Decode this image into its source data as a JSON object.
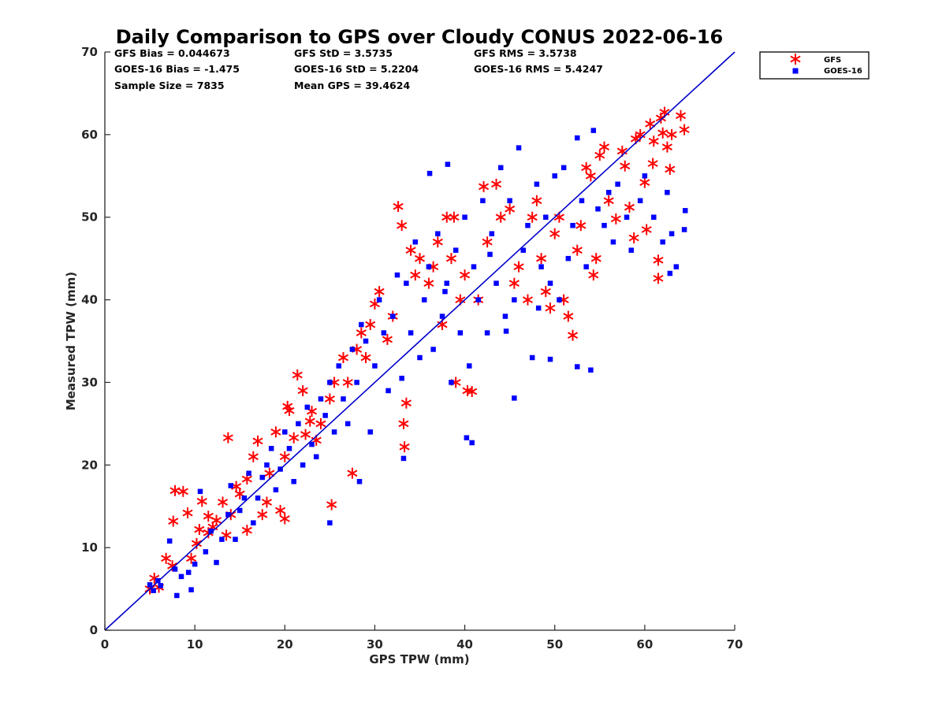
{
  "chart_data": {
    "type": "scatter",
    "title": "Daily Comparison to GPS over Cloudy CONUS 2022-06-16",
    "xlabel": "GPS TPW (mm)",
    "ylabel": "Measured TPW (mm)",
    "xlim": [
      0,
      70
    ],
    "ylim": [
      0,
      70
    ],
    "xticks": [
      "0",
      "10",
      "20",
      "30",
      "40",
      "50",
      "60",
      "70"
    ],
    "yticks": [
      "0",
      "10",
      "20",
      "30",
      "40",
      "50",
      "60",
      "70"
    ],
    "grid": false,
    "legend_position": "outside top-right",
    "reference_line": {
      "name": "1:1 line",
      "x": [
        0,
        70
      ],
      "y": [
        0,
        70
      ],
      "color": "#0000cc"
    },
    "stats": {
      "gfs_bias": "GFS Bias = 0.044673",
      "gfs_std": "GFS StD = 3.5735",
      "gfs_rms": "GFS RMS = 3.5738",
      "goes_bias": "GOES-16 Bias = -1.475",
      "goes_std": "GOES-16 StD = 5.2204",
      "goes_rms": "GOES-16 RMS = 5.4247",
      "sample_size": "Sample Size = 7835",
      "mean_gps": "Mean GPS = 39.4624"
    },
    "series": [
      {
        "name": "GFS",
        "marker": "asterisk",
        "color": "#ff0000",
        "points": [
          [
            5,
            5
          ],
          [
            5.5,
            6.3
          ],
          [
            6,
            5.2
          ],
          [
            6.8,
            8.7
          ],
          [
            7.5,
            7.8
          ],
          [
            7.6,
            13.2
          ],
          [
            7.8,
            16.9
          ],
          [
            8.7,
            16.8
          ],
          [
            9.2,
            14.2
          ],
          [
            9.6,
            8.7
          ],
          [
            10.2,
            10.5
          ],
          [
            10.5,
            12.2
          ],
          [
            10.8,
            15.6
          ],
          [
            11.5,
            11.8
          ],
          [
            11.5,
            13.8
          ],
          [
            12,
            12.5
          ],
          [
            12.4,
            13.3
          ],
          [
            13.1,
            15.5
          ],
          [
            13.5,
            11.5
          ],
          [
            13.7,
            23.3
          ],
          [
            14,
            14
          ],
          [
            14.6,
            17.4
          ],
          [
            15,
            16.5
          ],
          [
            15.8,
            12.1
          ],
          [
            15.8,
            18.3
          ],
          [
            16.5,
            21
          ],
          [
            17,
            22.9
          ],
          [
            17.5,
            14
          ],
          [
            18,
            15.5
          ],
          [
            18.3,
            19
          ],
          [
            19,
            24
          ],
          [
            19.5,
            14.5
          ],
          [
            20,
            13.5
          ],
          [
            20,
            21
          ],
          [
            20.3,
            27.1
          ],
          [
            20.5,
            26.6
          ],
          [
            21,
            23.3
          ],
          [
            21.4,
            30.9
          ],
          [
            22,
            29
          ],
          [
            22.3,
            23.7
          ],
          [
            22.8,
            25.3
          ],
          [
            23,
            26.5
          ],
          [
            23.5,
            23
          ],
          [
            24,
            25
          ],
          [
            25,
            28
          ],
          [
            25.2,
            15.2
          ],
          [
            25.5,
            30
          ],
          [
            26.5,
            33
          ],
          [
            27,
            30
          ],
          [
            27.5,
            19
          ],
          [
            28,
            34
          ],
          [
            28.5,
            36
          ],
          [
            29,
            33
          ],
          [
            29.5,
            37
          ],
          [
            30,
            39.5
          ],
          [
            30.5,
            41
          ],
          [
            31.4,
            35.2
          ],
          [
            32,
            38
          ],
          [
            32.6,
            51.3
          ],
          [
            33,
            49
          ],
          [
            33.2,
            25
          ],
          [
            33.3,
            22.2
          ],
          [
            33.5,
            27.5
          ],
          [
            34,
            46
          ],
          [
            34.5,
            43
          ],
          [
            35,
            45
          ],
          [
            36,
            42
          ],
          [
            36.5,
            44
          ],
          [
            37,
            47
          ],
          [
            37.5,
            37
          ],
          [
            38,
            50
          ],
          [
            38.5,
            45
          ],
          [
            38.8,
            50
          ],
          [
            39,
            30
          ],
          [
            39.5,
            40
          ],
          [
            40,
            43
          ],
          [
            40.3,
            29
          ],
          [
            40.8,
            28.9
          ],
          [
            41.5,
            40
          ],
          [
            42.1,
            53.7
          ],
          [
            42.5,
            47
          ],
          [
            43.5,
            54
          ],
          [
            44,
            50
          ],
          [
            45,
            51
          ],
          [
            45.5,
            42
          ],
          [
            46,
            44
          ],
          [
            47,
            40
          ],
          [
            47.5,
            50
          ],
          [
            48,
            52
          ],
          [
            48.5,
            45
          ],
          [
            49,
            41
          ],
          [
            49.5,
            39
          ],
          [
            50,
            48
          ],
          [
            50.5,
            50
          ],
          [
            51,
            40
          ],
          [
            51.5,
            38
          ],
          [
            52,
            35.7
          ],
          [
            52.5,
            46
          ],
          [
            52.9,
            49
          ],
          [
            53.5,
            56
          ],
          [
            54,
            55
          ],
          [
            54.3,
            43
          ],
          [
            54.6,
            45
          ],
          [
            55,
            57.5
          ],
          [
            55.5,
            58.5
          ],
          [
            56,
            52
          ],
          [
            56.8,
            49.8
          ],
          [
            57.5,
            58
          ],
          [
            57.8,
            56.2
          ],
          [
            58.3,
            51.2
          ],
          [
            58.8,
            47.5
          ],
          [
            59,
            59.5
          ],
          [
            59.5,
            60
          ],
          [
            60,
            54.2
          ],
          [
            60.2,
            48.5
          ],
          [
            60.6,
            61.3
          ],
          [
            60.9,
            56.5
          ],
          [
            61,
            59.2
          ],
          [
            61.5,
            44.8
          ],
          [
            61.5,
            42.6
          ],
          [
            61.8,
            62
          ],
          [
            62,
            60.2
          ],
          [
            62.2,
            62.7
          ],
          [
            62.5,
            58.5
          ],
          [
            62.8,
            55.8
          ],
          [
            63,
            60
          ],
          [
            64,
            62.3
          ],
          [
            64.4,
            60.6
          ]
        ]
      },
      {
        "name": "GOES-16",
        "marker": "square",
        "color": "#0000ff",
        "points": [
          [
            5,
            5.5
          ],
          [
            5.4,
            4.8
          ],
          [
            5.9,
            6
          ],
          [
            6.2,
            5.4
          ],
          [
            7.2,
            10.8
          ],
          [
            7.8,
            7.4
          ],
          [
            8,
            4.2
          ],
          [
            8.5,
            6.5
          ],
          [
            9.3,
            7
          ],
          [
            9.6,
            4.9
          ],
          [
            10,
            8
          ],
          [
            10.6,
            16.8
          ],
          [
            11.2,
            9.5
          ],
          [
            11.8,
            12
          ],
          [
            12.4,
            8.2
          ],
          [
            13,
            11
          ],
          [
            13.7,
            14
          ],
          [
            14,
            17.5
          ],
          [
            14.5,
            11
          ],
          [
            15,
            14.5
          ],
          [
            15.5,
            16
          ],
          [
            16,
            19
          ],
          [
            16.5,
            13
          ],
          [
            17,
            16
          ],
          [
            17.5,
            18.5
          ],
          [
            18,
            20
          ],
          [
            18.5,
            22
          ],
          [
            19,
            17
          ],
          [
            19.5,
            19.5
          ],
          [
            20,
            24
          ],
          [
            20.5,
            22
          ],
          [
            21,
            18
          ],
          [
            21.5,
            25
          ],
          [
            22,
            20
          ],
          [
            22.5,
            27
          ],
          [
            23,
            22.5
          ],
          [
            23.5,
            21
          ],
          [
            24,
            28
          ],
          [
            24.5,
            26
          ],
          [
            25,
            13
          ],
          [
            25,
            30
          ],
          [
            25.5,
            24
          ],
          [
            26,
            32
          ],
          [
            26.5,
            28
          ],
          [
            27,
            25
          ],
          [
            27.5,
            34
          ],
          [
            28,
            30
          ],
          [
            28.3,
            18
          ],
          [
            28.5,
            37
          ],
          [
            29,
            35
          ],
          [
            29.5,
            24
          ],
          [
            30,
            32
          ],
          [
            30.5,
            40
          ],
          [
            31,
            36
          ],
          [
            31.5,
            29
          ],
          [
            32,
            38
          ],
          [
            32.5,
            43
          ],
          [
            33,
            30.5
          ],
          [
            33.2,
            20.8
          ],
          [
            33.5,
            42
          ],
          [
            34,
            36
          ],
          [
            34.5,
            47
          ],
          [
            35,
            33
          ],
          [
            35.5,
            40
          ],
          [
            36,
            44
          ],
          [
            36.5,
            34
          ],
          [
            37,
            48
          ],
          [
            37.5,
            38
          ],
          [
            38,
            42
          ],
          [
            38.5,
            30
          ],
          [
            39,
            46
          ],
          [
            39.5,
            36
          ],
          [
            40,
            50
          ],
          [
            40.5,
            32
          ],
          [
            41,
            44
          ],
          [
            41.5,
            40
          ],
          [
            42,
            52
          ],
          [
            42.5,
            36
          ],
          [
            43,
            48
          ],
          [
            43.5,
            42
          ],
          [
            44,
            56
          ],
          [
            44.5,
            38
          ],
          [
            45,
            52
          ],
          [
            45.5,
            40
          ],
          [
            46,
            58.4
          ],
          [
            46.5,
            46
          ],
          [
            47,
            49
          ],
          [
            47.5,
            33
          ],
          [
            48,
            54
          ],
          [
            48.5,
            44
          ],
          [
            49,
            50
          ],
          [
            49.5,
            42
          ],
          [
            50,
            55
          ],
          [
            50.5,
            40
          ],
          [
            51,
            56
          ],
          [
            51.5,
            45
          ],
          [
            52,
            49
          ],
          [
            52.5,
            59.6
          ],
          [
            53,
            52
          ],
          [
            53.5,
            44
          ],
          [
            54,
            31.5
          ],
          [
            54.3,
            60.5
          ],
          [
            54.8,
            51
          ],
          [
            55.5,
            49
          ],
          [
            56,
            53
          ],
          [
            56.5,
            47
          ],
          [
            57,
            54
          ],
          [
            58,
            50
          ],
          [
            58.5,
            46
          ],
          [
            59.5,
            52
          ],
          [
            60,
            55
          ],
          [
            61,
            50
          ],
          [
            62,
            47
          ],
          [
            62.5,
            53
          ],
          [
            62.8,
            43.2
          ],
          [
            63,
            48
          ],
          [
            64.4,
            48.5
          ],
          [
            64.5,
            50.8
          ],
          [
            63.5,
            44
          ],
          [
            40.8,
            22.7
          ],
          [
            40.2,
            23.3
          ],
          [
            45.5,
            28.1
          ],
          [
            49.5,
            32.8
          ],
          [
            36.1,
            55.3
          ],
          [
            38.1,
            56.4
          ],
          [
            52.5,
            31.9
          ],
          [
            48.2,
            39
          ],
          [
            44.6,
            36.2
          ],
          [
            42.8,
            45.5
          ],
          [
            37.8,
            41
          ]
        ]
      }
    ]
  }
}
